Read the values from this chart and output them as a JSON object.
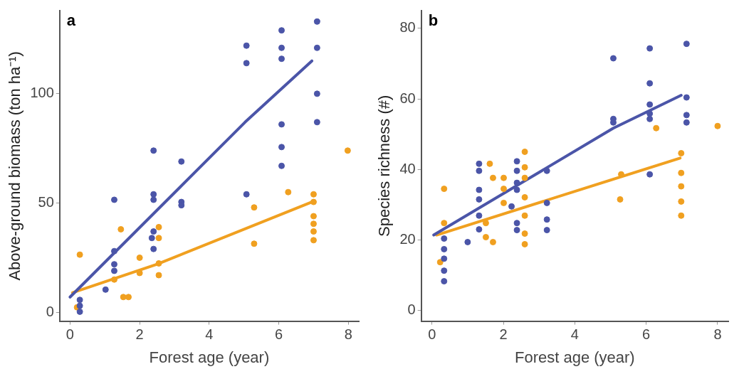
{
  "chart_data": [
    {
      "type": "scatter",
      "title": "a",
      "xlabel": "Forest age (year)",
      "ylabel": "Above-ground biomass (ton ha⁻¹)",
      "xlim": [
        -0.3,
        8.3
      ],
      "ylim": [
        -4,
        138
      ],
      "xticks": [
        0,
        2,
        4,
        6,
        8
      ],
      "yticks": [
        0,
        50,
        100
      ],
      "grid": false,
      "legend": false,
      "series": [
        {
          "type": "scatter",
          "marker": "circle",
          "color": "#4b55a8",
          "x": [
            0.28,
            0.28,
            0.28,
            1.02,
            1.27,
            1.27,
            1.27,
            1.27,
            2.4,
            2.4,
            2.4,
            2.4,
            2.35,
            2.4,
            3.2,
            3.2,
            3.2,
            5.07,
            5.07,
            5.07,
            6.08,
            6.08,
            6.08,
            6.08,
            6.08,
            6.08,
            7.1,
            7.1,
            7.1,
            7.1
          ],
          "values": [
            0.3,
            5.7,
            3,
            10.4,
            51.5,
            28,
            22,
            19,
            54,
            74,
            51.5,
            37,
            34,
            29,
            69,
            50.5,
            49,
            122,
            114,
            54,
            129,
            121,
            116,
            86,
            75.6,
            67,
            133,
            121,
            100,
            87
          ]
        },
        {
          "type": "scatter",
          "marker": "circle",
          "color": "#f0a020",
          "x": [
            0.28,
            0.2,
            1.46,
            1.27,
            1.53,
            1.68,
            2.0,
            2.0,
            2.55,
            2.55,
            2.55,
            2.55,
            5.29,
            5.29,
            6.27,
            7.0,
            7.0,
            7.0,
            7.0,
            7.0,
            7.0,
            7.98
          ],
          "values": [
            26.4,
            2.3,
            38,
            15,
            7,
            7,
            25,
            18,
            22.4,
            17,
            34,
            39,
            48,
            31.4,
            55,
            54,
            50.5,
            44,
            40.5,
            37,
            33,
            74
          ]
        },
        {
          "type": "line",
          "marker": "none",
          "color": "#4b55a8",
          "x": [
            0,
            5.03,
            6.95
          ],
          "values": [
            7,
            87,
            115
          ]
        },
        {
          "type": "line",
          "marker": "none",
          "color": "#f0a020",
          "x": [
            0.07,
            2.5,
            6.95
          ],
          "values": [
            9,
            22,
            50.5
          ]
        }
      ]
    },
    {
      "type": "scatter",
      "title": "b",
      "xlabel": "Forest age (year)",
      "ylabel": "Species richness (#)",
      "xlim": [
        -0.3,
        8.3
      ],
      "ylim": [
        -3,
        85
      ],
      "xticks": [
        0,
        2,
        4,
        6,
        8
      ],
      "yticks": [
        0,
        20,
        40,
        60,
        80
      ],
      "grid": false,
      "legend": false,
      "series": [
        {
          "type": "scatter",
          "marker": "circle",
          "color": "#4b55a8",
          "x": [
            0.34,
            0.34,
            0.34,
            0.34,
            0.34,
            1.0,
            1.32,
            1.32,
            1.32,
            1.32,
            1.32,
            1.32,
            2.23,
            2.38,
            2.38,
            2.38,
            2.38,
            2.38,
            2.38,
            3.22,
            3.22,
            3.22,
            3.22,
            5.08,
            5.08,
            5.08,
            6.1,
            6.1,
            6.1,
            6.1,
            6.1,
            6.1,
            7.13,
            7.13,
            7.13,
            7.13
          ],
          "values": [
            20.4,
            17.4,
            14.7,
            11.3,
            8.3,
            19.4,
            41.6,
            39.6,
            34.2,
            31.5,
            26.9,
            23,
            29.5,
            42.3,
            39.6,
            36.2,
            34.2,
            24.8,
            22.8,
            39.6,
            30.5,
            25.8,
            22.8,
            71.5,
            54.3,
            53.3,
            74.3,
            64.4,
            58.4,
            55.8,
            54.3,
            38.6,
            75.6,
            60.4,
            55.4,
            53.3
          ]
        },
        {
          "type": "scatter",
          "marker": "circle",
          "color": "#f0a020",
          "x": [
            0.34,
            0.34,
            0.23,
            1.62,
            1.71,
            2.01,
            2.01,
            2.01,
            1.51,
            1.71,
            1.51,
            2.6,
            2.6,
            2.6,
            2.6,
            2.6,
            2.6,
            2.6,
            5.3,
            5.27,
            6.28,
            6.98,
            6.98,
            6.98,
            6.98,
            6.98,
            8.0
          ],
          "values": [
            34.5,
            24.8,
            13.7,
            41.6,
            37.6,
            37.6,
            34.5,
            30.5,
            20.8,
            19.4,
            24.8,
            45,
            40.6,
            37.6,
            32.1,
            21.8,
            18.8,
            26.9,
            38.6,
            31.5,
            51.7,
            44.6,
            39,
            35.2,
            30.9,
            26.9,
            52.3
          ]
        },
        {
          "type": "line",
          "marker": "none",
          "color": "#4b55a8",
          "x": [
            0.05,
            5.08,
            6.98
          ],
          "values": [
            21.4,
            51.7,
            61
          ]
        },
        {
          "type": "line",
          "marker": "none",
          "color": "#f0a020",
          "x": [
            0.13,
            6.95
          ],
          "values": [
            21.4,
            43.2
          ]
        }
      ]
    }
  ]
}
